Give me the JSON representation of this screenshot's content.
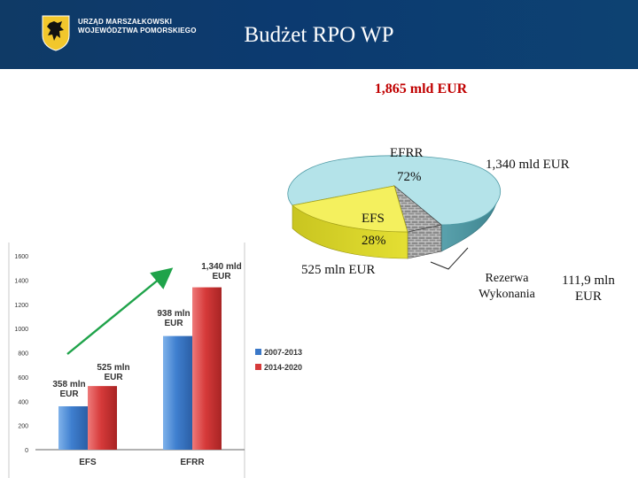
{
  "header": {
    "title": "Budżet RPO WP",
    "org_line1": "URZĄD MARSZAŁKOWSKI",
    "org_line2": "WOJEWÓDZTWA POMORSKIEGO",
    "logo_icon": "griffin-coat-of-arms-icon",
    "bg_color": "#0c3a6e"
  },
  "pie": {
    "total": "1,865 mld EUR",
    "efrr_name": "EFRR",
    "efrr_pct": "72%",
    "efrr_value": "1,340 mld EUR",
    "efs_name": "EFS",
    "efs_pct": "28%",
    "efs_value": "525 mln EUR",
    "reserve_label_1": "Rezerwa",
    "reserve_label_2": "Wykonania",
    "reserve_value_1": "111,9 mln",
    "reserve_value_2": "EUR"
  },
  "chart_data": [
    {
      "type": "pie",
      "title": "1,865 mld EUR",
      "slices": [
        {
          "name": "EFRR",
          "percent": 72,
          "value_label": "1,340 mld EUR",
          "color": "#a8dfe6"
        },
        {
          "name": "EFS",
          "percent": 28,
          "value_label": "525 mln EUR",
          "color": "#f2ee5a"
        }
      ],
      "extra_slice": {
        "name": "Rezerwa Wykonania",
        "value_label": "111,9 mln EUR",
        "pattern": "brick"
      }
    },
    {
      "type": "bar",
      "categories": [
        "EFS",
        "EFRR"
      ],
      "series": [
        {
          "name": "2007-2013",
          "values": [
            358,
            938
          ],
          "labels": [
            "358 mln EUR",
            "938 mln EUR"
          ],
          "color": "#3a78c8"
        },
        {
          "name": "2014-2020",
          "values": [
            525,
            1340
          ],
          "labels": [
            "525 mln EUR",
            "1,340 mld EUR"
          ],
          "color": "#d63a3a"
        }
      ],
      "ylim": [
        0,
        1600
      ],
      "yticks": [
        "0",
        "200",
        "400",
        "600",
        "800",
        "1000",
        "1200",
        "1400",
        "1600"
      ],
      "legend_position": "right",
      "grid": false,
      "trend_arrow": true
    }
  ]
}
